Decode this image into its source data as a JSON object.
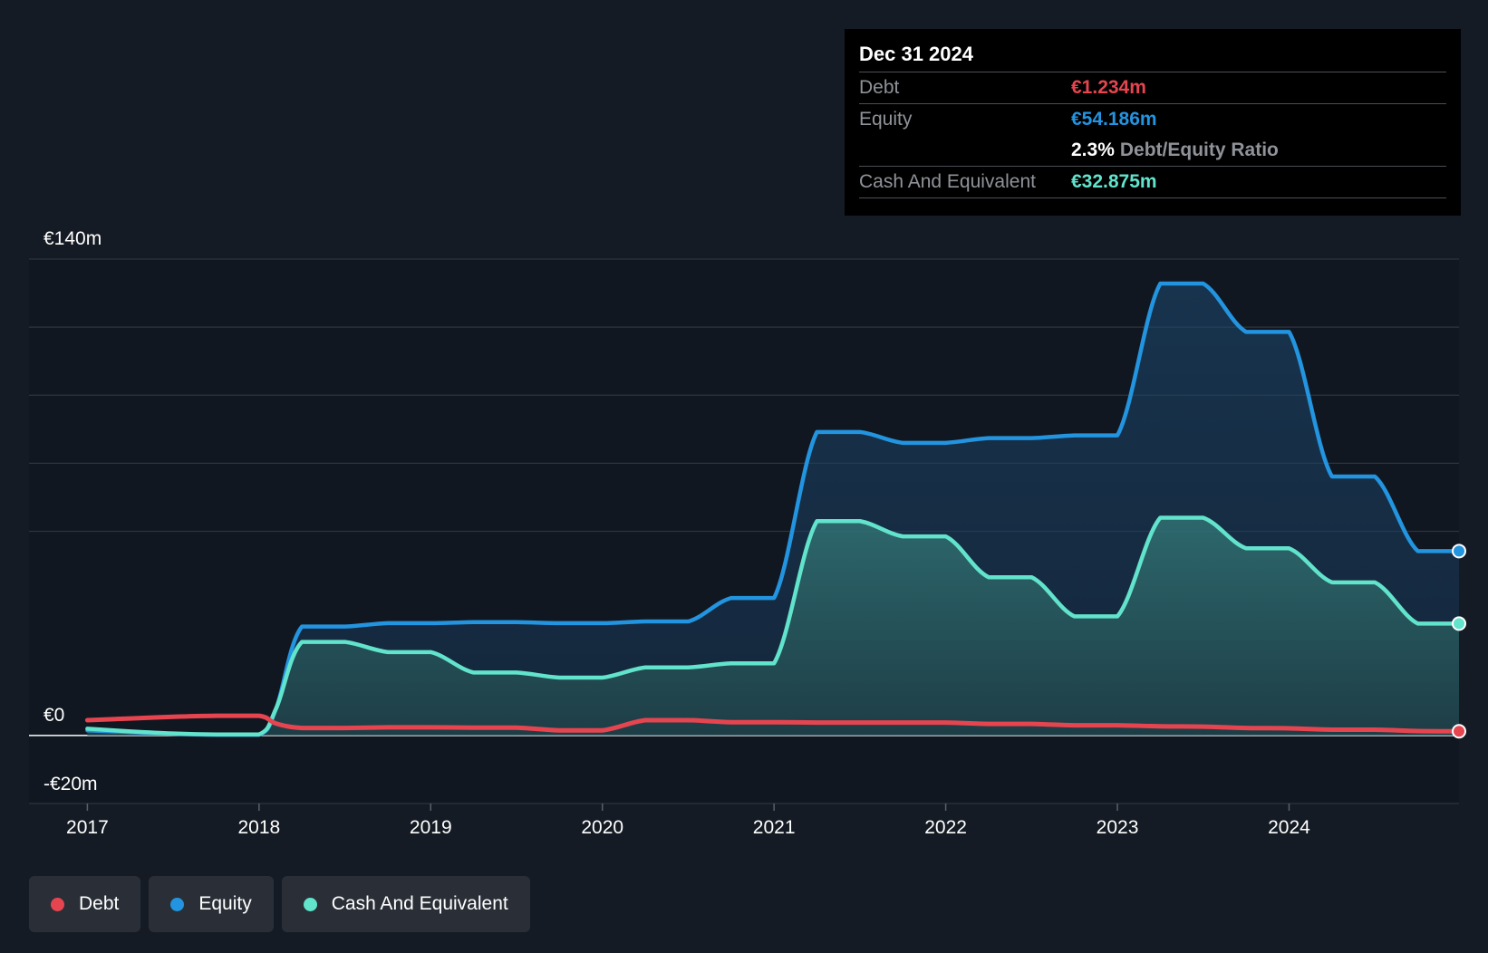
{
  "chart_data": {
    "type": "area",
    "x": [
      2017.0,
      2017.25,
      2017.5,
      2017.75,
      2018.0,
      2018.1,
      2018.25,
      2018.5,
      2018.75,
      2019.0,
      2019.25,
      2019.5,
      2019.75,
      2020.0,
      2020.25,
      2020.5,
      2020.75,
      2021.0,
      2021.25,
      2021.5,
      2021.75,
      2022.0,
      2022.25,
      2022.5,
      2022.75,
      2023.0,
      2023.25,
      2023.5,
      2023.75,
      2024.0,
      2024.25,
      2024.5,
      2024.75,
      2024.99
    ],
    "series": [
      {
        "name": "Debt",
        "color": "#e64550",
        "values": [
          4.5,
          5.0,
          5.5,
          5.8,
          5.8,
          3.5,
          2.2,
          2.2,
          2.4,
          2.4,
          2.3,
          2.3,
          1.5,
          1.5,
          4.5,
          4.5,
          3.9,
          3.9,
          3.8,
          3.8,
          3.8,
          3.8,
          3.4,
          3.4,
          3.0,
          3.0,
          2.7,
          2.6,
          2.2,
          2.1,
          1.7,
          1.7,
          1.3,
          1.234
        ]
      },
      {
        "name": "Equity",
        "color": "#2394df",
        "values": [
          1.5,
          1.0,
          0.5,
          0.2,
          0.2,
          8.0,
          32.0,
          32.0,
          33.0,
          33.0,
          33.3,
          33.3,
          33.0,
          33.0,
          33.5,
          33.5,
          40.4,
          40.4,
          89.2,
          89.2,
          86.0,
          86.0,
          87.4,
          87.4,
          88.2,
          88.2,
          132.8,
          132.8,
          118.6,
          118.6,
          76.1,
          76.1,
          54.186,
          54.186
        ]
      },
      {
        "name": "Cash And Equivalent",
        "color": "#62e3cc",
        "values": [
          2.0,
          1.2,
          0.6,
          0.3,
          0.3,
          8.0,
          27.5,
          27.5,
          24.5,
          24.5,
          18.5,
          18.5,
          17.0,
          17.0,
          20.0,
          20.0,
          21.2,
          21.2,
          63.0,
          63.0,
          58.5,
          58.5,
          46.5,
          46.5,
          35.0,
          35.0,
          64.0,
          64.0,
          55.0,
          55.0,
          45.0,
          45.0,
          32.875,
          32.875
        ]
      }
    ],
    "y_tick_labels": [
      "€140m",
      "€0",
      "-€20m"
    ],
    "x_tick_labels": [
      "2017",
      "2018",
      "2019",
      "2020",
      "2021",
      "2022",
      "2023",
      "2024"
    ],
    "xlim": [
      2016.66,
      2024.99
    ],
    "ylim": [
      -20,
      140
    ],
    "grid": true,
    "legend_position": "bottom-left"
  },
  "tooltip": {
    "date": "Dec 31 2024",
    "debt_label": "Debt",
    "debt_value": "€1.234m",
    "equity_label": "Equity",
    "equity_value": "€54.186m",
    "ratio_value": "2.3%",
    "ratio_label": "Debt/Equity Ratio",
    "cash_label": "Cash And Equivalent",
    "cash_value": "€32.875m"
  },
  "legend": {
    "debt": "Debt",
    "equity": "Equity",
    "cash": "Cash And Equivalent"
  }
}
